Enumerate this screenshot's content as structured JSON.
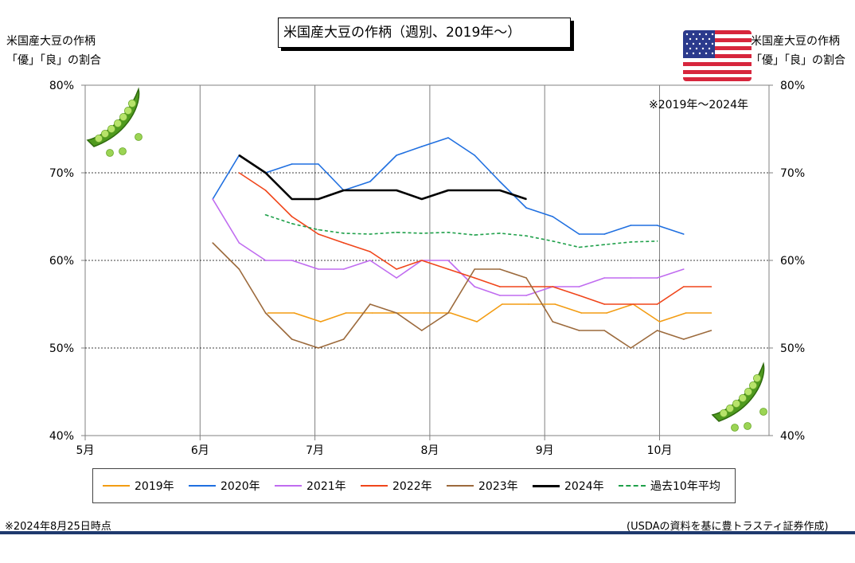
{
  "title": "米国産大豆の作柄（週別、2019年～）",
  "left_axis_label": [
    "米国産大豆の作柄",
    "「優」「良」の割合"
  ],
  "right_axis_label": [
    "米国産大豆の作柄",
    "「優」「良」の割合"
  ],
  "note": "※2019年～2024年",
  "footer_left": "※2024年8月25日時点",
  "footer_right": "(USDAの資料を基に豊トラスティ証券作成)",
  "colors": {
    "grid": "#808080",
    "axis": "#808080",
    "bottom_bar": "#1f3a6e"
  },
  "icons": [
    "pea-pod-icon",
    "us-flag-icon"
  ],
  "chart_data": {
    "type": "line",
    "x_axis": {
      "ticks": [
        "5月",
        "6月",
        "7月",
        "8月",
        "9月",
        "10月"
      ]
    },
    "y_axis": {
      "ticks": [
        "40%",
        "50%",
        "60%",
        "70%",
        "80%"
      ],
      "min": 40,
      "max": 80
    },
    "grid": true,
    "legend_position": "bottom",
    "series": [
      {
        "name": "2019年",
        "color": "#f39c12",
        "dash": false,
        "points": [
          [
            1.59,
            54
          ],
          [
            1.82,
            54
          ],
          [
            2.05,
            53
          ],
          [
            2.27,
            54
          ],
          [
            2.5,
            54
          ],
          [
            2.73,
            54
          ],
          [
            2.95,
            54
          ],
          [
            3.18,
            54
          ],
          [
            3.41,
            53
          ],
          [
            3.63,
            55
          ],
          [
            3.86,
            55
          ],
          [
            4.09,
            55
          ],
          [
            4.32,
            54
          ],
          [
            4.54,
            54
          ],
          [
            4.77,
            55
          ],
          [
            5.0,
            53
          ],
          [
            5.23,
            54
          ],
          [
            5.45,
            54
          ]
        ]
      },
      {
        "name": "2020年",
        "color": "#1f6fe0",
        "dash": false,
        "points": [
          [
            1.11,
            67
          ],
          [
            1.34,
            72
          ],
          [
            1.57,
            70
          ],
          [
            1.8,
            71
          ],
          [
            2.03,
            71
          ],
          [
            2.25,
            68
          ],
          [
            2.48,
            69
          ],
          [
            2.71,
            72
          ],
          [
            2.93,
            73
          ],
          [
            3.16,
            74
          ],
          [
            3.39,
            72
          ],
          [
            3.61,
            69
          ],
          [
            3.84,
            66
          ],
          [
            4.07,
            65
          ],
          [
            4.3,
            63
          ],
          [
            4.52,
            63
          ],
          [
            4.75,
            64
          ],
          [
            4.98,
            64
          ],
          [
            5.21,
            63
          ]
        ]
      },
      {
        "name": "2021年",
        "color": "#c06cf0",
        "dash": false,
        "points": [
          [
            1.11,
            67
          ],
          [
            1.34,
            62
          ],
          [
            1.57,
            60
          ],
          [
            1.8,
            60
          ],
          [
            2.03,
            59
          ],
          [
            2.25,
            59
          ],
          [
            2.48,
            60
          ],
          [
            2.71,
            58
          ],
          [
            2.93,
            60
          ],
          [
            3.16,
            60
          ],
          [
            3.39,
            57
          ],
          [
            3.61,
            56
          ],
          [
            3.84,
            56
          ],
          [
            4.07,
            57
          ],
          [
            4.3,
            57
          ],
          [
            4.52,
            58
          ],
          [
            4.75,
            58
          ],
          [
            4.98,
            58
          ],
          [
            5.21,
            59
          ]
        ]
      },
      {
        "name": "2022年",
        "color": "#f0451a",
        "dash": false,
        "points": [
          [
            1.34,
            70
          ],
          [
            1.57,
            68
          ],
          [
            1.8,
            65
          ],
          [
            2.03,
            63
          ],
          [
            2.25,
            62
          ],
          [
            2.48,
            61
          ],
          [
            2.71,
            59
          ],
          [
            2.93,
            60
          ],
          [
            3.16,
            59
          ],
          [
            3.39,
            58
          ],
          [
            3.61,
            57
          ],
          [
            3.84,
            57
          ],
          [
            4.07,
            57
          ],
          [
            4.3,
            56
          ],
          [
            4.52,
            55
          ],
          [
            4.75,
            55
          ],
          [
            4.98,
            55
          ],
          [
            5.21,
            57
          ],
          [
            5.45,
            57
          ]
        ]
      },
      {
        "name": "2023年",
        "color": "#9c6a3c",
        "dash": false,
        "points": [
          [
            1.11,
            62
          ],
          [
            1.34,
            59
          ],
          [
            1.57,
            54
          ],
          [
            1.8,
            51
          ],
          [
            2.03,
            50
          ],
          [
            2.25,
            51
          ],
          [
            2.48,
            55
          ],
          [
            2.71,
            54
          ],
          [
            2.93,
            52
          ],
          [
            3.16,
            54
          ],
          [
            3.39,
            59
          ],
          [
            3.61,
            59
          ],
          [
            3.84,
            58
          ],
          [
            4.07,
            53
          ],
          [
            4.3,
            52
          ],
          [
            4.52,
            52
          ],
          [
            4.75,
            50
          ],
          [
            4.98,
            52
          ],
          [
            5.21,
            51
          ],
          [
            5.45,
            52
          ]
        ]
      },
      {
        "name": "2024年",
        "color": "#000000",
        "dash": false,
        "points": [
          [
            1.34,
            72
          ],
          [
            1.57,
            70
          ],
          [
            1.8,
            67
          ],
          [
            2.03,
            67
          ],
          [
            2.25,
            68
          ],
          [
            2.48,
            68
          ],
          [
            2.71,
            68
          ],
          [
            2.93,
            67
          ],
          [
            3.16,
            68
          ],
          [
            3.39,
            68
          ],
          [
            3.61,
            68
          ],
          [
            3.84,
            67
          ]
        ]
      },
      {
        "name": "過去10年平均",
        "color": "#1fa04a",
        "dash": true,
        "points": [
          [
            1.57,
            65.2
          ],
          [
            1.8,
            64.2
          ],
          [
            2.03,
            63.5
          ],
          [
            2.25,
            63.1
          ],
          [
            2.48,
            63.0
          ],
          [
            2.71,
            63.2
          ],
          [
            2.93,
            63.1
          ],
          [
            3.16,
            63.2
          ],
          [
            3.39,
            62.9
          ],
          [
            3.61,
            63.1
          ],
          [
            3.84,
            62.8
          ],
          [
            4.07,
            62.2
          ],
          [
            4.3,
            61.5
          ],
          [
            4.52,
            61.8
          ],
          [
            4.75,
            62.1
          ],
          [
            4.98,
            62.2
          ]
        ]
      }
    ]
  }
}
